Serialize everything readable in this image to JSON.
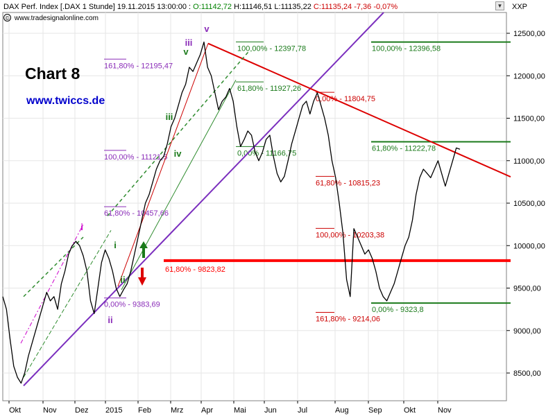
{
  "header": {
    "instrument": "DAX Perf. Index [.DAX",
    "period": "1 Stunde]",
    "datetime": "19.11.2015 13:00:00",
    "open": "O:11142,72",
    "high": "H:11146,51",
    "low": "L:11135,22",
    "close": "C:11135,24",
    "change": "-7,36",
    "change_pct": "-0,07%"
  },
  "source": "www.tradesignalonline.com",
  "scroll_icon": "triangle-down-icon",
  "axis_label_right": "XXP",
  "overlay": {
    "title": "Chart 8",
    "website": "www.twiccs.de"
  },
  "colors": {
    "price": "#000000",
    "purple": "#7b2fbe",
    "red_line": "#dd0000",
    "fib_green": "#1a7a1a",
    "fib_red": "#cc0000",
    "fib_purple": "#8a2cb8",
    "support": "#ff0000",
    "grid": "#e6e6e6",
    "magenta": "#cc00cc"
  },
  "chart_data": {
    "type": "line",
    "title": "",
    "xlabel": "",
    "ylabel": "",
    "ylim": [
      8150,
      12750
    ],
    "y_ticks": [
      {
        "v": 8500,
        "label": "8500,00"
      },
      {
        "v": 9000,
        "label": "9000,00"
      },
      {
        "v": 9500,
        "label": "9500,00"
      },
      {
        "v": 10000,
        "label": "10000,00"
      },
      {
        "v": 10500,
        "label": "10500,00"
      },
      {
        "v": 11000,
        "label": "11000,00"
      },
      {
        "v": 11500,
        "label": "11500,00"
      },
      {
        "v": 12000,
        "label": "12000,00"
      },
      {
        "v": 12500,
        "label": "12500,00"
      }
    ],
    "x_ticks": [
      "Okt",
      "Nov",
      "Dez",
      "2015",
      "Feb",
      "Mrz",
      "Apr",
      "Mai",
      "Jun",
      "Jul",
      "Aug",
      "Sep",
      "Okt",
      "Nov"
    ],
    "grid": true,
    "series": [
      {
        "values": [
          9400,
          9250,
          8900,
          8580,
          8450,
          8380,
          8500,
          8700,
          8850,
          9000,
          9150,
          9300,
          9450,
          9350,
          9400,
          9250,
          9550,
          9700,
          9900,
          10000,
          10050,
          10000,
          9880,
          9700,
          9350,
          9200,
          9500,
          9800,
          9950,
          9850,
          9700,
          9500,
          9400,
          9480,
          9550,
          9700,
          9900,
          10100,
          10300,
          10500,
          10600,
          10750,
          10900,
          11000,
          11050,
          11200,
          11400,
          11500,
          11650,
          11800,
          11900,
          12100,
          12050,
          12150,
          12250,
          12397,
          12100,
          12000,
          11800,
          11600,
          11700,
          11750,
          11850,
          11700,
          11400,
          11166,
          11250,
          11350,
          11300,
          11100,
          11000,
          11100,
          11250,
          11300,
          11050,
          10850,
          10750,
          10815,
          11000,
          11200,
          11350,
          11500,
          11650,
          11700,
          11550,
          11700,
          11800,
          11650,
          11500,
          11300,
          11000,
          10800,
          10500,
          10150,
          9600,
          9400,
          10200,
          10100,
          10000,
          9900,
          9950,
          9850,
          9700,
          9500,
          9400,
          9350,
          9450,
          9550,
          9700,
          9850,
          10000,
          10100,
          10300,
          10600,
          10800,
          10900,
          10850,
          10800,
          10900,
          11000,
          10850,
          10700,
          10850,
          11000,
          11150,
          11135
        ]
      }
    ],
    "fib_levels": [
      {
        "group": "green",
        "pct": "100,00%",
        "value": "12397,78",
        "v": 12397.78
      },
      {
        "group": "green",
        "pct": "61,80%",
        "value": "11927,26",
        "v": 11927.26
      },
      {
        "group": "green",
        "pct": "0,00%",
        "value": "11166,75",
        "v": 11166.75
      },
      {
        "group": "green2",
        "pct": "100,00%",
        "value": "12396,58",
        "v": 12396.58
      },
      {
        "group": "green2",
        "pct": "61,80%",
        "value": "11222,78",
        "v": 11222.78
      },
      {
        "group": "green2",
        "pct": "0,00%",
        "value": "9323,8",
        "v": 9323.8
      },
      {
        "group": "purple",
        "pct": "161,80%",
        "value": "12195,47",
        "v": 12195.47
      },
      {
        "group": "purple",
        "pct": "100,00%",
        "value": "11121,5",
        "v": 11121.5
      },
      {
        "group": "purple",
        "pct": "61,80%",
        "value": "10457,66",
        "v": 10457.66
      },
      {
        "group": "purple",
        "pct": "0,00%",
        "value": "9383,69",
        "v": 9383.69
      },
      {
        "group": "red",
        "pct": "0,00%",
        "value": "11804,75",
        "v": 11804.75
      },
      {
        "group": "red",
        "pct": "61,80%",
        "value": "10815,23",
        "v": 10815.23
      },
      {
        "group": "red",
        "pct": "100,00%",
        "value": "10203,38",
        "v": 10203.38
      },
      {
        "group": "red",
        "pct": "161,80%",
        "value": "9214,06",
        "v": 9214.06
      },
      {
        "group": "support",
        "pct": "61,80%",
        "value": "9823,82",
        "v": 9823.82
      }
    ],
    "waves": [
      {
        "label": "v",
        "color": "purple"
      },
      {
        "label": "iii",
        "color": "purple"
      },
      {
        "label": "v",
        "color": "green"
      },
      {
        "label": "iii",
        "color": "green"
      },
      {
        "label": "iv",
        "color": "green"
      },
      {
        "label": "i",
        "color": "green"
      },
      {
        "label": "ii",
        "color": "green"
      },
      {
        "label": "i",
        "color": "magenta"
      },
      {
        "label": "ii",
        "color": "purple"
      }
    ]
  }
}
